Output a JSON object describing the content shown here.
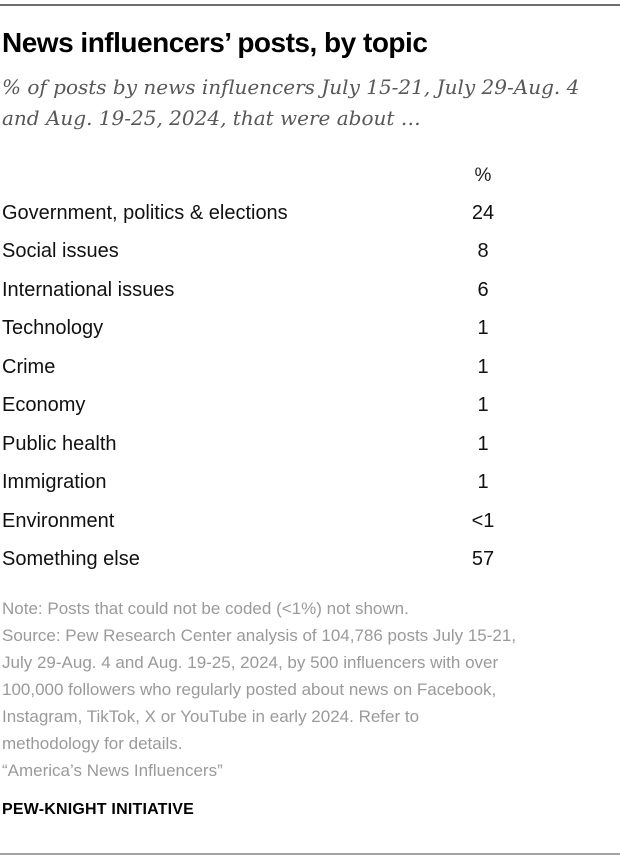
{
  "header": {
    "title": "News influencers’ posts, by topic",
    "subtitle": "% of posts by news influencers July 15-21, July 29-Aug. 4 and Aug. 19-25, 2024, that were about …"
  },
  "table": {
    "value_header": "%",
    "rows": [
      {
        "label": "Government, politics & elections",
        "value": "24"
      },
      {
        "label": "Social issues",
        "value": "8"
      },
      {
        "label": "International issues",
        "value": "6"
      },
      {
        "label": "Technology",
        "value": "1"
      },
      {
        "label": "Crime",
        "value": "1"
      },
      {
        "label": "Economy",
        "value": "1"
      },
      {
        "label": "Public health",
        "value": "1"
      },
      {
        "label": "Immigration",
        "value": "1"
      },
      {
        "label": "Environment",
        "value": "<1"
      },
      {
        "label": "Something else",
        "value": "57"
      }
    ]
  },
  "footer": {
    "note_line": "Note: Posts that could not be coded (<1%) not shown.",
    "source_lines": [
      "Source: Pew Research Center analysis of 104,786 posts July 15-21,",
      "July 29-Aug. 4 and Aug. 19-25, 2024, by 500 influencers with over",
      "100,000 followers who regularly posted about news on Facebook,",
      "Instagram, TikTok, X or YouTube in early 2024. Refer to",
      "methodology for details."
    ],
    "citation_line": "“America’s News Influencers”",
    "brand": "PEW-KNIGHT INITIATIVE"
  },
  "colors": {
    "top_rule": "#6d6d6d",
    "bottom_rule": "#a3a3a3",
    "title_text": "#000000",
    "subtitle_text": "#58585b",
    "table_text": "#111111",
    "note_text": "#9a9a9a"
  },
  "chart_data": {
    "type": "table",
    "title": "News influencers’ posts, by topic",
    "subtitle": "% of posts by news influencers July 15-21, July 29-Aug. 4 and Aug. 19-25, 2024, that were about …",
    "column_header": "%",
    "categories": [
      "Government, politics & elections",
      "Social issues",
      "International issues",
      "Technology",
      "Crime",
      "Economy",
      "Public health",
      "Immigration",
      "Environment",
      "Something else"
    ],
    "values": [
      24,
      8,
      6,
      1,
      1,
      1,
      1,
      1,
      "<1",
      57
    ],
    "units": "percent",
    "note": "Posts that could not be coded (<1%) not shown.",
    "source": "Pew Research Center analysis of 104,786 posts July 15-21, July 29-Aug. 4 and Aug. 19-25, 2024, by 500 influencers with over 100,000 followers who regularly posted about news on Facebook, Instagram, TikTok, X or YouTube in early 2024. Refer to methodology for details.",
    "report": "America’s News Influencers",
    "brand": "PEW-KNIGHT INITIATIVE"
  }
}
